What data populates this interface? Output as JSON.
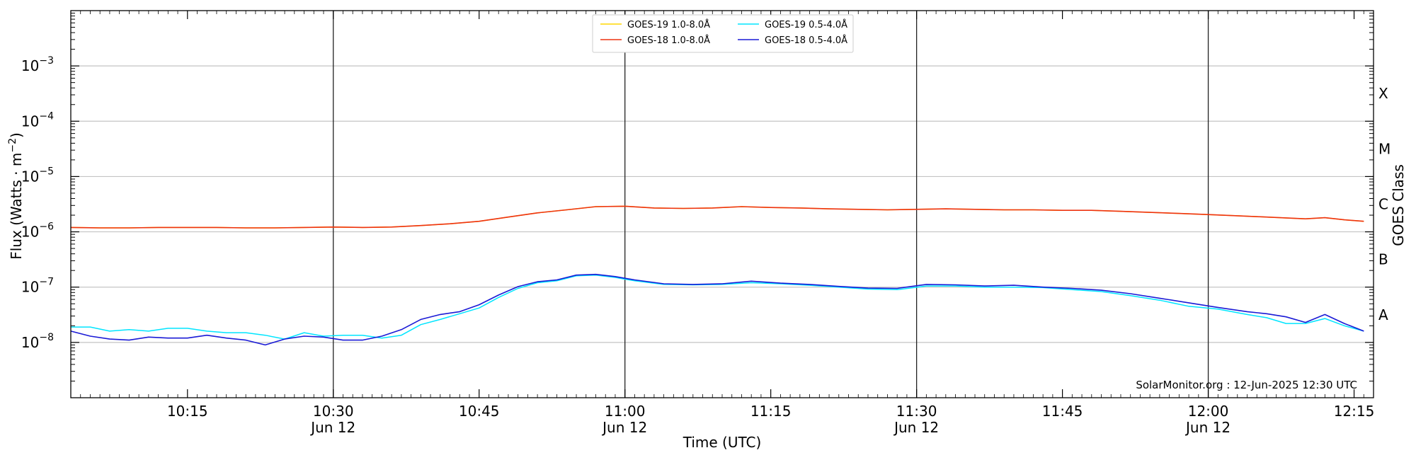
{
  "chart_data": {
    "type": "line",
    "xlabel": "Time (UTC)",
    "ylabel_main": "Flux (Watts · m",
    "ylabel_sup": "−2",
    "ylabel_close": ")",
    "ylabel_right": "GOES Class",
    "yscale": "log",
    "ylim": [
      1e-09,
      0.01
    ],
    "xlim": [
      "10:03",
      "12:17"
    ],
    "grid": true,
    "legend_position": "top-center",
    "annotation": "SolarMonitor.org : 12-Jun-2025 12:30 UTC",
    "x_ticks": [
      {
        "time": "10:15",
        "label": "10:15",
        "sub": ""
      },
      {
        "time": "10:30",
        "label": "10:30",
        "sub": "Jun 12"
      },
      {
        "time": "10:45",
        "label": "10:45",
        "sub": ""
      },
      {
        "time": "11:00",
        "label": "11:00",
        "sub": "Jun 12"
      },
      {
        "time": "11:15",
        "label": "11:15",
        "sub": ""
      },
      {
        "time": "11:30",
        "label": "11:30",
        "sub": "Jun 12"
      },
      {
        "time": "11:45",
        "label": "11:45",
        "sub": ""
      },
      {
        "time": "12:00",
        "label": "12:00",
        "sub": "Jun 12"
      },
      {
        "time": "12:15",
        "label": "12:15",
        "sub": ""
      }
    ],
    "y_ticks": [
      {
        "value": 0.001,
        "base": "10",
        "exp": "−3"
      },
      {
        "value": 0.0001,
        "base": "10",
        "exp": "−4"
      },
      {
        "value": 1e-05,
        "base": "10",
        "exp": "−5"
      },
      {
        "value": 1e-06,
        "base": "10",
        "exp": "−6"
      },
      {
        "value": 1e-07,
        "base": "10",
        "exp": "−7"
      },
      {
        "value": 1e-08,
        "base": "10",
        "exp": "−8"
      }
    ],
    "class_labels": [
      {
        "label": "X",
        "value": 0.000316
      },
      {
        "label": "M",
        "value": 3.16e-05
      },
      {
        "label": "C",
        "value": 3.16e-06
      },
      {
        "label": "B",
        "value": 3.16e-07
      },
      {
        "label": "A",
        "value": 3.16e-08
      }
    ],
    "vlines": [
      "10:30",
      "11:00",
      "11:30",
      "12:00"
    ],
    "series": [
      {
        "name": "GOES-19 1.0-8.0Å",
        "color": "#ffd700",
        "width": 1.5,
        "x": [
          "10:03",
          "10:06",
          "10:09",
          "10:12",
          "10:15",
          "10:18",
          "10:21",
          "10:24",
          "10:27",
          "10:30",
          "10:33",
          "10:36",
          "10:39",
          "10:42",
          "10:45",
          "10:48",
          "10:51",
          "10:54",
          "10:57",
          "11:00",
          "11:03",
          "11:06",
          "11:09",
          "11:12",
          "11:15",
          "11:18",
          "11:21",
          "11:24",
          "11:27",
          "11:30",
          "11:33",
          "11:36",
          "11:39",
          "11:42",
          "11:45",
          "11:48",
          "11:51",
          "11:54",
          "11:57",
          "12:00",
          "12:03",
          "12:06",
          "12:09",
          "12:10",
          "12:12",
          "12:14",
          "12:16"
        ],
        "y": [
          1.2e-06,
          1.18e-06,
          1.18e-06,
          1.2e-06,
          1.2e-06,
          1.2e-06,
          1.18e-06,
          1.18e-06,
          1.2e-06,
          1.22e-06,
          1.2e-06,
          1.22e-06,
          1.3e-06,
          1.4e-06,
          1.55e-06,
          1.85e-06,
          2.2e-06,
          2.5e-06,
          2.85e-06,
          2.9e-06,
          2.7e-06,
          2.65e-06,
          2.7e-06,
          2.85e-06,
          2.75e-06,
          2.7e-06,
          2.6e-06,
          2.55e-06,
          2.5e-06,
          2.55e-06,
          2.6e-06,
          2.55e-06,
          2.5e-06,
          2.5e-06,
          2.45e-06,
          2.45e-06,
          2.35e-06,
          2.25e-06,
          2.15e-06,
          2.05e-06,
          1.95e-06,
          1.85e-06,
          1.75e-06,
          1.72e-06,
          1.8e-06,
          1.65e-06,
          1.55e-06
        ]
      },
      {
        "name": "GOES-18 1.0-8.0Å",
        "color": "#ee3311",
        "width": 1.6,
        "x": [
          "10:03",
          "10:06",
          "10:09",
          "10:12",
          "10:15",
          "10:18",
          "10:21",
          "10:24",
          "10:27",
          "10:30",
          "10:33",
          "10:36",
          "10:39",
          "10:42",
          "10:45",
          "10:48",
          "10:51",
          "10:54",
          "10:57",
          "11:00",
          "11:03",
          "11:06",
          "11:09",
          "11:12",
          "11:15",
          "11:18",
          "11:21",
          "11:24",
          "11:27",
          "11:30",
          "11:33",
          "11:36",
          "11:39",
          "11:42",
          "11:45",
          "11:48",
          "11:51",
          "11:54",
          "11:57",
          "12:00",
          "12:03",
          "12:06",
          "12:09",
          "12:10",
          "12:12",
          "12:14",
          "12:16"
        ],
        "y": [
          1.2e-06,
          1.18e-06,
          1.18e-06,
          1.2e-06,
          1.2e-06,
          1.2e-06,
          1.18e-06,
          1.18e-06,
          1.2e-06,
          1.22e-06,
          1.2e-06,
          1.22e-06,
          1.3e-06,
          1.4e-06,
          1.55e-06,
          1.85e-06,
          2.2e-06,
          2.5e-06,
          2.85e-06,
          2.9e-06,
          2.7e-06,
          2.65e-06,
          2.7e-06,
          2.85e-06,
          2.75e-06,
          2.7e-06,
          2.6e-06,
          2.55e-06,
          2.5e-06,
          2.55e-06,
          2.6e-06,
          2.55e-06,
          2.5e-06,
          2.5e-06,
          2.45e-06,
          2.45e-06,
          2.35e-06,
          2.25e-06,
          2.15e-06,
          2.05e-06,
          1.95e-06,
          1.85e-06,
          1.75e-06,
          1.72e-06,
          1.8e-06,
          1.65e-06,
          1.55e-06
        ]
      },
      {
        "name": "GOES-19 0.5-4.0Å",
        "color": "#00e5ff",
        "width": 1.5,
        "x": [
          "10:03",
          "10:05",
          "10:07",
          "10:09",
          "10:11",
          "10:13",
          "10:15",
          "10:17",
          "10:19",
          "10:21",
          "10:23",
          "10:25",
          "10:27",
          "10:29",
          "10:31",
          "10:33",
          "10:35",
          "10:37",
          "10:39",
          "10:41",
          "10:43",
          "10:45",
          "10:47",
          "10:49",
          "10:51",
          "10:53",
          "10:55",
          "10:57",
          "10:59",
          "11:01",
          "11:04",
          "11:07",
          "11:10",
          "11:13",
          "11:16",
          "11:19",
          "11:22",
          "11:25",
          "11:28",
          "11:31",
          "11:34",
          "11:37",
          "11:40",
          "11:43",
          "11:46",
          "11:49",
          "11:52",
          "11:55",
          "11:58",
          "12:01",
          "12:04",
          "12:06",
          "12:08",
          "12:10",
          "12:12",
          "12:14",
          "12:16"
        ],
        "y": [
          1.9e-08,
          1.9e-08,
          1.6e-08,
          1.7e-08,
          1.6e-08,
          1.8e-08,
          1.8e-08,
          1.6e-08,
          1.5e-08,
          1.5e-08,
          1.35e-08,
          1.15e-08,
          1.5e-08,
          1.3e-08,
          1.35e-08,
          1.35e-08,
          1.2e-08,
          1.35e-08,
          2.1e-08,
          2.6e-08,
          3.3e-08,
          4.2e-08,
          6.5e-08,
          9.5e-08,
          1.2e-07,
          1.3e-07,
          1.6e-07,
          1.65e-07,
          1.5e-07,
          1.3e-07,
          1.12e-07,
          1.1e-07,
          1.12e-07,
          1.2e-07,
          1.15e-07,
          1.08e-07,
          1e-07,
          9.2e-08,
          9e-08,
          1.05e-07,
          1.05e-07,
          1e-07,
          1e-07,
          9.8e-08,
          9e-08,
          8.3e-08,
          7e-08,
          5.8e-08,
          4.5e-08,
          4e-08,
          3.2e-08,
          2.8e-08,
          2.2e-08,
          2.2e-08,
          2.7e-08,
          2e-08,
          1.6e-08
        ]
      },
      {
        "name": "GOES-18 0.5-4.0Å",
        "color": "#1a1ad6",
        "width": 1.6,
        "x": [
          "10:03",
          "10:05",
          "10:07",
          "10:09",
          "10:11",
          "10:13",
          "10:15",
          "10:17",
          "10:19",
          "10:21",
          "10:23",
          "10:25",
          "10:27",
          "10:29",
          "10:31",
          "10:33",
          "10:35",
          "10:37",
          "10:39",
          "10:41",
          "10:43",
          "10:45",
          "10:47",
          "10:49",
          "10:51",
          "10:53",
          "10:55",
          "10:57",
          "10:59",
          "11:01",
          "11:04",
          "11:07",
          "11:10",
          "11:13",
          "11:16",
          "11:19",
          "11:22",
          "11:25",
          "11:28",
          "11:31",
          "11:34",
          "11:37",
          "11:40",
          "11:43",
          "11:46",
          "11:49",
          "11:52",
          "11:55",
          "11:58",
          "12:01",
          "12:04",
          "12:06",
          "12:08",
          "12:10",
          "12:12",
          "12:14",
          "12:16"
        ],
        "y": [
          1.6e-08,
          1.3e-08,
          1.15e-08,
          1.1e-08,
          1.25e-08,
          1.2e-08,
          1.2e-08,
          1.35e-08,
          1.2e-08,
          1.1e-08,
          9e-09,
          1.15e-08,
          1.3e-08,
          1.25e-08,
          1.1e-08,
          1.1e-08,
          1.3e-08,
          1.7e-08,
          2.6e-08,
          3.2e-08,
          3.6e-08,
          4.8e-08,
          7.2e-08,
          1.02e-07,
          1.25e-07,
          1.35e-07,
          1.65e-07,
          1.7e-07,
          1.55e-07,
          1.35e-07,
          1.15e-07,
          1.12e-07,
          1.15e-07,
          1.28e-07,
          1.18e-07,
          1.12e-07,
          1.03e-07,
          9.6e-08,
          9.5e-08,
          1.12e-07,
          1.1e-07,
          1.05e-07,
          1.08e-07,
          1e-07,
          9.5e-08,
          8.8e-08,
          7.6e-08,
          6.3e-08,
          5.2e-08,
          4.3e-08,
          3.6e-08,
          3.3e-08,
          2.9e-08,
          2.3e-08,
          3.2e-08,
          2.2e-08,
          1.6e-08
        ]
      }
    ]
  }
}
